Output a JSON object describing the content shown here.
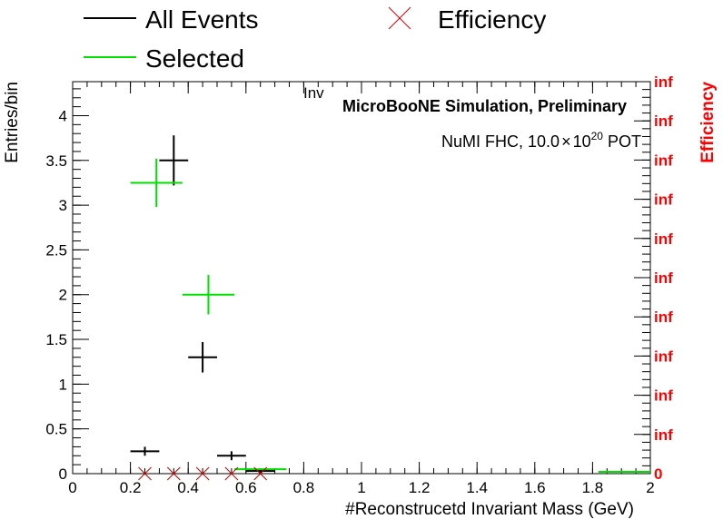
{
  "chart_data": {
    "type": "scatter",
    "title": "Inv",
    "xlabel": "#Reconstrucetd Invariant Mass (GeV)",
    "ylabel": "Entries/bin",
    "y2label": "Efficiency",
    "xlim": [
      0,
      2
    ],
    "ylim": [
      0,
      4.38
    ],
    "x_ticks": [
      "0",
      "0.2",
      "0.4",
      "0.6",
      "0.8",
      "1",
      "1.2",
      "1.4",
      "1.6",
      "1.8",
      "2"
    ],
    "y_ticks": [
      "0",
      "0.5",
      "1",
      "1.5",
      "2",
      "2.5",
      "3",
      "3.5",
      "4"
    ],
    "y2_ticks": [
      "0",
      "inf",
      "inf",
      "inf",
      "inf",
      "inf",
      "inf",
      "inf",
      "inf",
      "inf",
      "inf"
    ],
    "annotations": [
      "MicroBooNE Simulation, Preliminary"
    ],
    "pot_label": {
      "prefix": "NuMI FHC, 10.0",
      "times": "×",
      "base": "10",
      "exponent": "20",
      "suffix": " POT"
    },
    "legend": {
      "placement": "top",
      "entries": [
        {
          "label": "All Events",
          "color": "#000000",
          "marker": "line"
        },
        {
          "label": "Efficiency",
          "color": "#cc0000",
          "marker": "cross"
        },
        {
          "label": "Selected",
          "color": "#00e000",
          "marker": "line"
        }
      ]
    },
    "series": [
      {
        "name": "All Events",
        "color": "#000000",
        "points": [
          {
            "x": 0.25,
            "y": 0.25,
            "xerr": 0.05,
            "yerr": 0.05
          },
          {
            "x": 0.35,
            "y": 3.5,
            "xerr": 0.05,
            "yerr": 0.28
          },
          {
            "x": 0.45,
            "y": 1.3,
            "xerr": 0.05,
            "yerr": 0.17
          },
          {
            "x": 0.55,
            "y": 0.2,
            "xerr": 0.05,
            "yerr": 0.05
          },
          {
            "x": 0.65,
            "y": 0.03,
            "xerr": 0.05,
            "yerr": 0.02
          }
        ]
      },
      {
        "name": "Selected",
        "color": "#00e000",
        "points": [
          {
            "x": 0.29,
            "y": 3.25,
            "xerr": 0.09,
            "yerr": 0.27
          },
          {
            "x": 0.47,
            "y": 2.0,
            "xerr": 0.09,
            "yerr": 0.22
          },
          {
            "x": 0.65,
            "y": 0.05,
            "xerr": 0.09,
            "yerr": 0.01
          },
          {
            "x": 1.91,
            "y": 0.02,
            "xerr": 0.09,
            "yerr": 0.01
          }
        ]
      },
      {
        "name": "Efficiency",
        "color": "#cc0000",
        "points": [
          {
            "x": 0.25,
            "y": 0
          },
          {
            "x": 0.35,
            "y": 0
          },
          {
            "x": 0.45,
            "y": 0
          },
          {
            "x": 0.55,
            "y": 0
          },
          {
            "x": 0.65,
            "y": 0
          }
        ]
      }
    ]
  }
}
